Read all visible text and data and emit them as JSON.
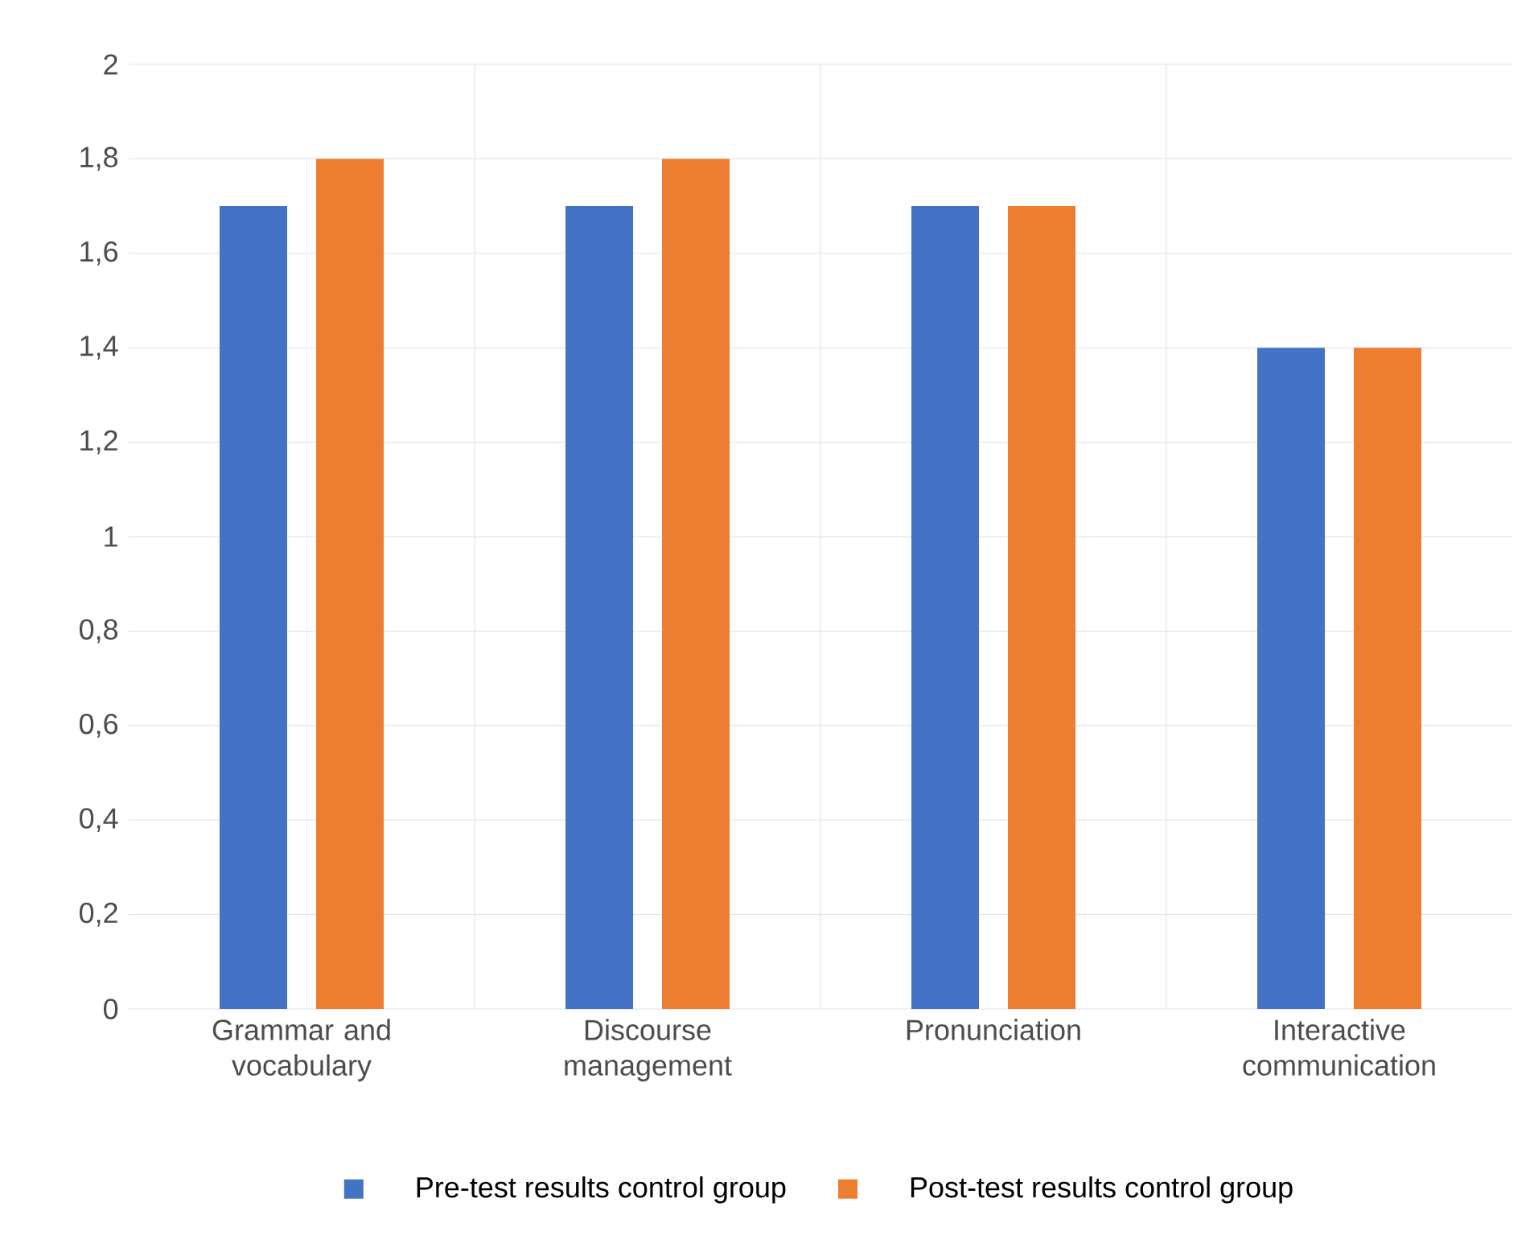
{
  "chart_data": {
    "type": "bar",
    "categories": [
      "Grammar and vocabulary",
      "Discourse management",
      "Pronunciation",
      "Interactive communication"
    ],
    "series": [
      {
        "name": "Pre-test results control group",
        "color": "#4472c4",
        "values": [
          1.7,
          1.7,
          1.7,
          1.4
        ]
      },
      {
        "name": "Post-test results control group",
        "color": "#ed7d31",
        "values": [
          1.8,
          1.8,
          1.7,
          1.4
        ]
      }
    ],
    "ylim": [
      0,
      2
    ],
    "yticks": [
      0,
      {
        "value": 0.2,
        "label": "0,2"
      },
      {
        "value": 0.4,
        "label": "0,4"
      },
      {
        "value": 0.6,
        "label": "0,6"
      },
      {
        "value": 0.8,
        "label": "0,8"
      },
      1,
      {
        "value": 1.2,
        "label": "1,2"
      },
      {
        "value": 1.4,
        "label": "1,4"
      },
      {
        "value": 1.6,
        "label": "1,6"
      },
      {
        "value": 1.8,
        "label": "1,8"
      },
      2
    ],
    "grid": true,
    "legend": "bottom"
  }
}
